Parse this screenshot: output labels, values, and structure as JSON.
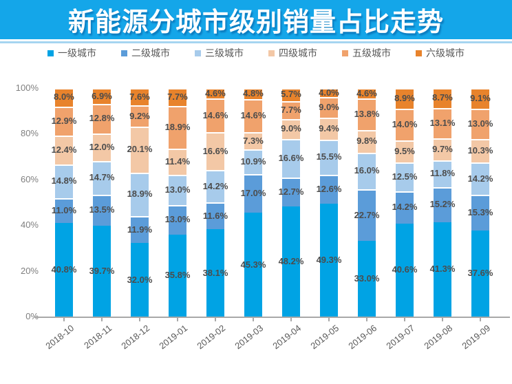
{
  "header": {
    "title": "新能源分城市级别销量占比走势"
  },
  "colors": {
    "banner_bg": "#14a6e9",
    "banner_rule": "#a6d5f0",
    "axis_line": "#a8a8a8",
    "pct_label_text": "#4c4c4c",
    "y_tick_text": "#7f7f7f",
    "x_tick_text": "#595959"
  },
  "chart_data": {
    "type": "bar",
    "variant": "100-percent-stacked-column",
    "title": "新能源分城市级别销量占比走势",
    "xlabel": "",
    "ylabel": "",
    "ylim": [
      0,
      100
    ],
    "grid": false,
    "legend_position": "top",
    "y_ticks": [
      "0%",
      "20%",
      "40%",
      "60%",
      "80%",
      "100%"
    ],
    "y_tick_values": [
      0,
      20,
      40,
      60,
      80,
      100
    ],
    "categories": [
      "2018-10",
      "2018-11",
      "2018-12",
      "2019-01",
      "2019-02",
      "2019-03",
      "2019-04",
      "2019-05",
      "2019-06",
      "2019-07",
      "2019-08",
      "2019-09"
    ],
    "series": [
      {
        "name": "一级城市",
        "color": "#00a3e4",
        "values": [
          40.8,
          39.7,
          32.0,
          35.8,
          38.1,
          45.3,
          48.2,
          49.3,
          33.0,
          40.6,
          41.3,
          37.6
        ]
      },
      {
        "name": "二级城市",
        "color": "#5b9cd9",
        "values": [
          11.0,
          13.5,
          11.9,
          13.0,
          11.6,
          17.0,
          12.7,
          12.6,
          22.7,
          14.2,
          15.2,
          15.3
        ]
      },
      {
        "name": "三级城市",
        "color": "#a7cbeb",
        "values": [
          14.8,
          14.7,
          18.9,
          13.0,
          14.2,
          10.9,
          16.6,
          15.5,
          16.0,
          12.5,
          11.8,
          14.2
        ]
      },
      {
        "name": "四级城市",
        "color": "#f3c8a6",
        "values": [
          12.4,
          12.0,
          20.1,
          11.4,
          16.6,
          7.3,
          9.0,
          9.4,
          9.8,
          9.5,
          9.7,
          10.3
        ]
      },
      {
        "name": "五级城市",
        "color": "#f0a26c",
        "values": [
          12.9,
          12.8,
          9.2,
          18.9,
          14.6,
          14.6,
          7.7,
          9.0,
          13.8,
          14.0,
          13.1,
          13.0
        ]
      },
      {
        "name": "六级城市",
        "color": "#e8832c",
        "values": [
          8.0,
          6.9,
          7.6,
          7.7,
          4.6,
          4.8,
          5.7,
          4.0,
          4.6,
          8.9,
          8.7,
          9.1
        ]
      }
    ],
    "value_suffix": "%"
  }
}
